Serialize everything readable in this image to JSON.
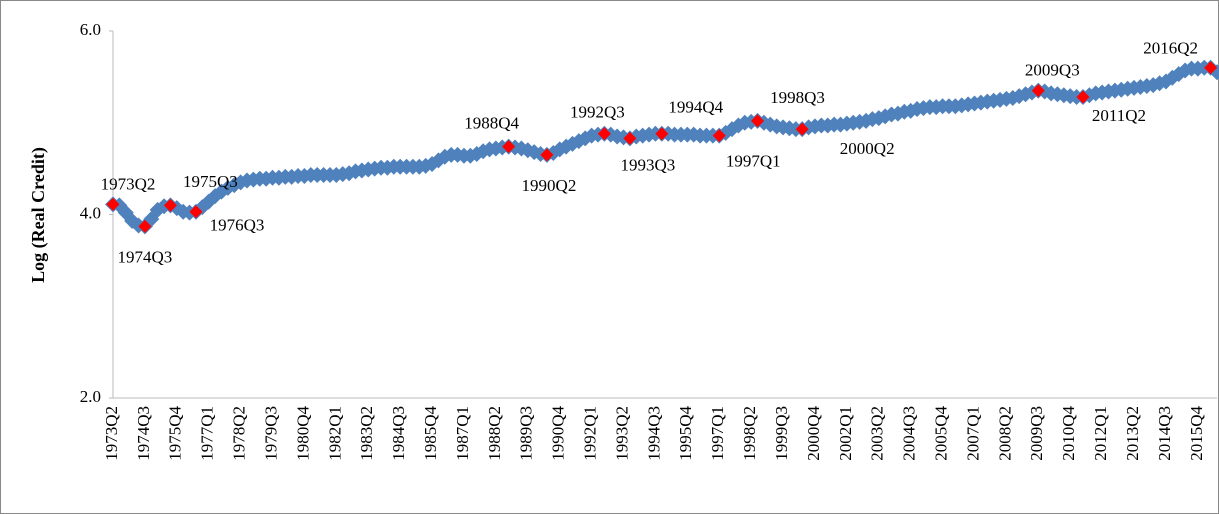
{
  "chart_data": {
    "type": "line",
    "y_label": "Log (Real Credit)",
    "categories": [
      "1973Q2",
      null,
      null,
      null,
      null,
      "1974Q3",
      null,
      null,
      null,
      null,
      "1975Q4",
      null,
      null,
      null,
      null,
      "1977Q1",
      null,
      null,
      null,
      null,
      "1978Q2",
      null,
      null,
      null,
      null,
      "1979Q3",
      null,
      null,
      null,
      null,
      "1980Q4",
      null,
      null,
      null,
      null,
      "1982Q1",
      null,
      null,
      null,
      null,
      "1983Q2",
      null,
      null,
      null,
      null,
      "1984Q3",
      null,
      null,
      null,
      null,
      "1985Q4",
      null,
      null,
      null,
      null,
      "1987Q1",
      null,
      null,
      null,
      null,
      "1988Q2",
      null,
      null,
      null,
      null,
      "1989Q3",
      null,
      null,
      null,
      null,
      "1990Q4",
      null,
      null,
      null,
      null,
      "1992Q1",
      null,
      null,
      null,
      null,
      "1993Q2",
      null,
      null,
      null,
      null,
      "1994Q3",
      null,
      null,
      null,
      null,
      "1995Q4",
      null,
      null,
      null,
      null,
      "1997Q1",
      null,
      null,
      null,
      null,
      "1998Q2",
      null,
      null,
      null,
      null,
      "1999Q3",
      null,
      null,
      null,
      null,
      "2000Q4",
      null,
      null,
      null,
      null,
      "2002Q1",
      null,
      null,
      null,
      null,
      "2003Q2",
      null,
      null,
      null,
      null,
      "2004Q3",
      null,
      null,
      null,
      null,
      "2005Q4",
      null,
      null,
      null,
      null,
      "2007Q1",
      null,
      null,
      null,
      null,
      "2008Q2",
      null,
      null,
      null,
      null,
      "2009Q3",
      null,
      null,
      null,
      null,
      "2010Q4",
      null,
      null,
      null,
      null,
      "2012Q1",
      null,
      null,
      null,
      null,
      "2013Q2",
      null,
      null,
      null,
      null,
      "2014Q3",
      null,
      null,
      null,
      null,
      "2015Q4",
      null,
      null,
      null
    ],
    "series": [
      {
        "color": "#4f81bd",
        "values": [
          4.11,
          4.1,
          4.02,
          3.93,
          3.88,
          3.87,
          3.95,
          4.05,
          4.09,
          4.1,
          4.07,
          4.03,
          4.02,
          4.03,
          4.08,
          4.14,
          4.2,
          4.25,
          4.29,
          4.32,
          4.35,
          4.37,
          4.38,
          4.39,
          4.39,
          4.4,
          4.4,
          4.41,
          4.41,
          4.42,
          4.42,
          4.43,
          4.43,
          4.43,
          4.43,
          4.43,
          4.44,
          4.45,
          4.47,
          4.48,
          4.49,
          4.5,
          4.51,
          4.51,
          4.52,
          4.52,
          4.52,
          4.52,
          4.52,
          4.53,
          4.55,
          4.59,
          4.63,
          4.65,
          4.65,
          4.64,
          4.64,
          4.66,
          4.69,
          4.71,
          4.72,
          4.73,
          4.74,
          4.73,
          4.72,
          4.7,
          4.68,
          4.66,
          4.65,
          4.67,
          4.71,
          4.74,
          4.77,
          4.8,
          4.83,
          4.86,
          4.87,
          4.88,
          4.87,
          4.85,
          4.84,
          4.83,
          4.85,
          4.86,
          4.87,
          4.88,
          4.88,
          4.88,
          4.87,
          4.87,
          4.87,
          4.87,
          4.86,
          4.86,
          4.86,
          4.86,
          4.89,
          4.93,
          4.97,
          5.0,
          5.01,
          5.02,
          5.0,
          4.98,
          4.96,
          4.95,
          4.94,
          4.93,
          4.93,
          4.95,
          4.96,
          4.97,
          4.97,
          4.98,
          4.98,
          4.99,
          5.0,
          5.01,
          5.02,
          5.04,
          5.05,
          5.07,
          5.09,
          5.1,
          5.12,
          5.13,
          5.15,
          5.16,
          5.17,
          5.17,
          5.18,
          5.18,
          5.18,
          5.19,
          5.2,
          5.21,
          5.22,
          5.23,
          5.24,
          5.25,
          5.26,
          5.27,
          5.29,
          5.31,
          5.33,
          5.35,
          5.34,
          5.32,
          5.31,
          5.3,
          5.29,
          5.28,
          5.28,
          5.3,
          5.32,
          5.33,
          5.34,
          5.35,
          5.36,
          5.37,
          5.38,
          5.39,
          5.4,
          5.41,
          5.43,
          5.45,
          5.49,
          5.53,
          5.57,
          5.59,
          5.59,
          5.6,
          5.6,
          5.55
        ]
      }
    ],
    "highlight_points": [
      "1973Q2",
      "1974Q3",
      "1975Q3",
      "1976Q3",
      "1988Q4",
      "1990Q2",
      "1992Q3",
      "1993Q3",
      "1994Q4",
      "1997Q1",
      "1998Q3",
      "2000Q2",
      "2009Q3",
      "2011Q2",
      "2016Q2"
    ],
    "highlight_color": "#ff0000",
    "ylim": [
      2,
      6
    ],
    "yticks": [
      {
        "value": 2,
        "label": "2.0"
      },
      {
        "value": 4,
        "label": "4.0"
      },
      {
        "value": 6,
        "label": "6.0"
      }
    ],
    "grid": false
  }
}
